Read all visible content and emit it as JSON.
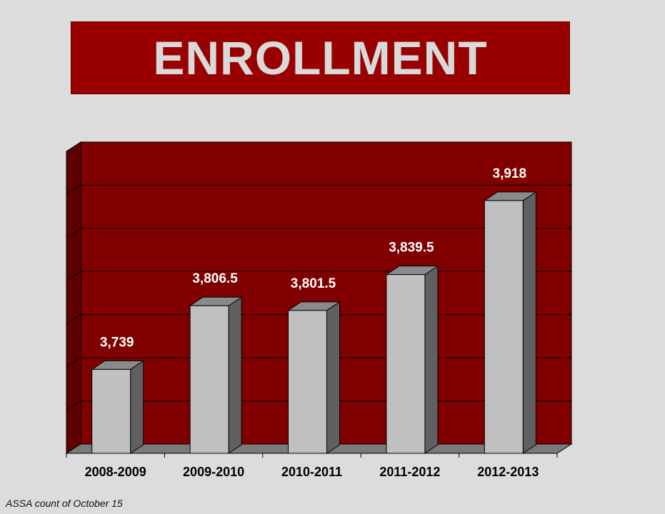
{
  "title": "ENROLLMENT",
  "footnote": "ASSA count of October 15",
  "colors": {
    "background": "#dcdcdc",
    "banner": "#990000",
    "plot_back": "#800000",
    "bar_front": "#c0c0c0",
    "bar_side": "#606060",
    "bar_top": "#8a8a8a",
    "label_text": "#ffffff"
  },
  "chart_data": {
    "type": "bar",
    "categories": [
      "2008-2009",
      "2009-2010",
      "2010-2011",
      "2011-2012",
      "2012-2013"
    ],
    "values": [
      3739,
      3806.5,
      3801.5,
      3839.5,
      3918
    ],
    "data_labels": [
      "3,739",
      "3,806.5",
      "3,801.5",
      "3,839.5",
      "3,918"
    ],
    "ylim": [
      3650,
      3980
    ],
    "style": "3d-column",
    "grid": true,
    "legend": "none",
    "xlabel": "",
    "ylabel": ""
  }
}
